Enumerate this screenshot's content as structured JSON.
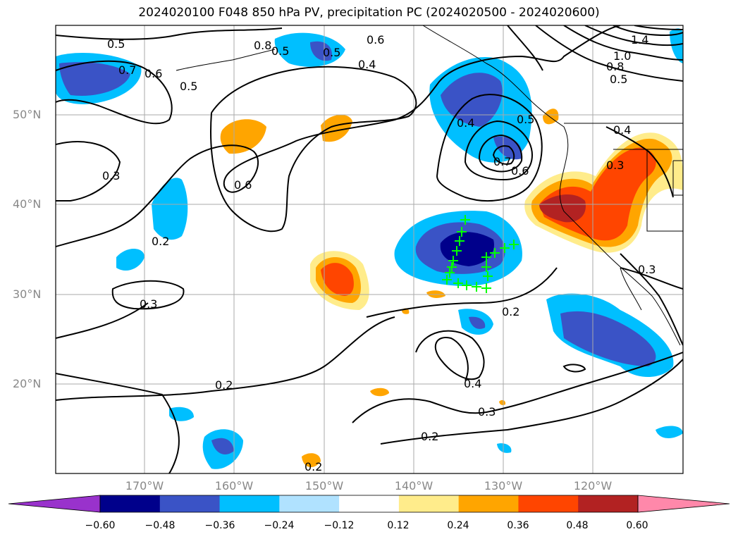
{
  "title": "2024020100 F048 850 hPa PV, precipitation PC (2024020500 - 2024020600)",
  "map": {
    "lat_labels": [
      "50°N",
      "40°N",
      "30°N",
      "20°N"
    ],
    "lon_labels": [
      "170°W",
      "160°W",
      "150°W",
      "140°W",
      "130°W",
      "120°W"
    ],
    "contour_labels": [
      "0.5",
      "0.7",
      "0.6",
      "0.5",
      "0.8",
      "0.5",
      "0.5",
      "0.6",
      "0.4",
      "0.4",
      "0.5",
      "0.7",
      "0.6",
      "0.3",
      "0.6",
      "0.2",
      "0.3",
      "0.2",
      "0.2",
      "0.4",
      "0.3",
      "0.2",
      "0.2",
      "1.4",
      "1.0",
      "0.8",
      "0.5",
      "0.4",
      "0.3",
      "0.3"
    ],
    "marker_color": "#00ff00"
  },
  "colorbar": {
    "ticks": [
      "−0.60",
      "−0.48",
      "−0.36",
      "−0.24",
      "−0.12",
      "0.12",
      "0.24",
      "0.36",
      "0.48",
      "0.60"
    ],
    "colors": [
      "#9932cc",
      "#00008b",
      "#3a53c6",
      "#00bfff",
      "#b0e2ff",
      "#ffffff",
      "#ffec8b",
      "#ffa500",
      "#ff4500",
      "#b22222",
      "#ff88aa"
    ]
  }
}
